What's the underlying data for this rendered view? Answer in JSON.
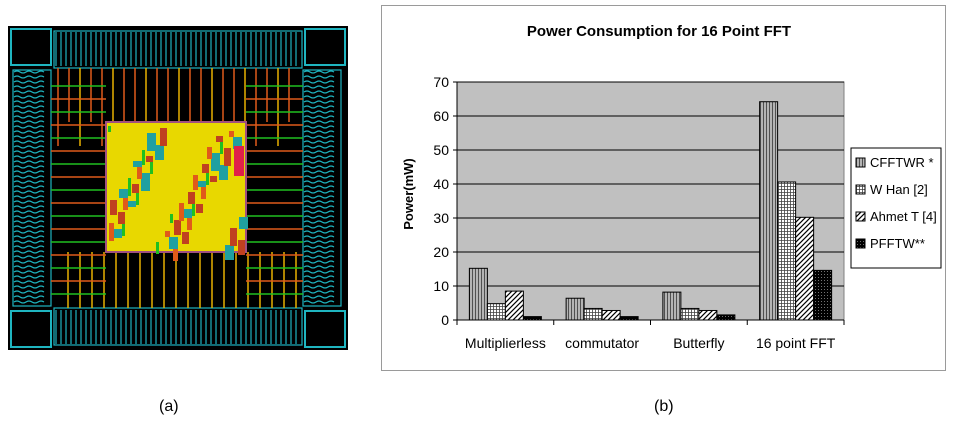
{
  "captions": {
    "left": "(a)",
    "right": "(b)"
  },
  "chart_data": {
    "type": "bar",
    "title": "Power Consumption for 16 Point FFT",
    "xlabel": "",
    "ylabel": "Power(mW)",
    "ylim": [
      0,
      70
    ],
    "yticks": [
      0,
      10,
      20,
      30,
      40,
      50,
      60,
      70
    ],
    "grid": true,
    "legend_position": "right",
    "plot_background": "#c0c0c0",
    "categories": [
      "Multiplierless",
      "commutator",
      "Butterfly",
      "16 point FFT"
    ],
    "series": [
      {
        "name": "CFFTWR *",
        "pattern": "vertical-lines",
        "values": [
          15.2,
          6.4,
          8.2,
          64.2
        ]
      },
      {
        "name": "W Han [2]",
        "pattern": "grid",
        "values": [
          4.8,
          3.4,
          3.4,
          40.6
        ]
      },
      {
        "name": "Ahmet T [4]",
        "pattern": "diagonal",
        "values": [
          8.5,
          2.8,
          2.8,
          30.2
        ]
      },
      {
        "name": "PFFTW**",
        "pattern": "dark-dots",
        "values": [
          1.0,
          1.0,
          1.5,
          14.6
        ]
      }
    ]
  },
  "colors": {
    "chip_background": "#000000",
    "chip_pads": "#1fb5c0",
    "chip_core": "#e8d800",
    "chip_routing": "#e05a1a"
  }
}
